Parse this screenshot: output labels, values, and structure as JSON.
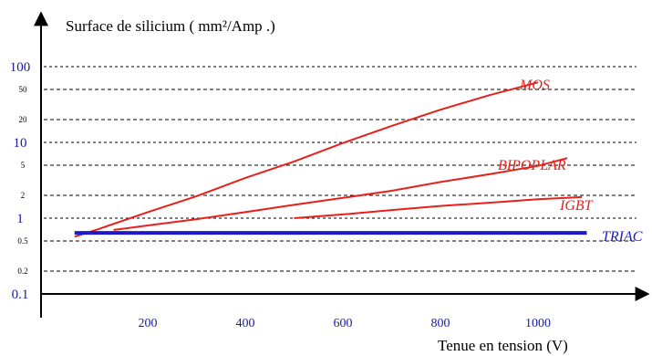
{
  "chart_data": {
    "type": "line",
    "title": "",
    "ylabel": "Surface de silicium ( mm²/Amp .)",
    "xlabel": "Tenue en tension (V)",
    "y_scale": "log",
    "ylim": [
      0.1,
      100
    ],
    "xlim": [
      0,
      1100
    ],
    "grid": "dashed horizontal lines at major and minor y ticks",
    "x_ticks": [
      {
        "value": 200,
        "label": "200"
      },
      {
        "value": 400,
        "label": "400"
      },
      {
        "value": 600,
        "label": "600"
      },
      {
        "value": 800,
        "label": "800"
      },
      {
        "value": 1000,
        "label": "1000"
      }
    ],
    "y_ticks": [
      {
        "value": 100,
        "label": "100",
        "major": true
      },
      {
        "value": 50,
        "label": "50",
        "major": false
      },
      {
        "value": 20,
        "label": "20",
        "major": false
      },
      {
        "value": 10,
        "label": "10",
        "major": true
      },
      {
        "value": 5,
        "label": "5",
        "major": false
      },
      {
        "value": 2,
        "label": "2",
        "major": false
      },
      {
        "value": 1,
        "label": "1",
        "major": true
      },
      {
        "value": 0.5,
        "label": "0.5",
        "major": false
      },
      {
        "value": 0.2,
        "label": "0.2",
        "major": false
      },
      {
        "value": 0.1,
        "label": "0.1",
        "major": true
      }
    ],
    "series": [
      {
        "name": "MOS",
        "color": "#e8201a",
        "x": [
          50,
          100,
          200,
          300,
          400,
          500,
          600,
          700,
          800,
          900,
          1000
        ],
        "y": [
          0.57,
          0.72,
          1.2,
          1.95,
          3.4,
          5.6,
          9.8,
          16.5,
          27,
          42,
          62
        ]
      },
      {
        "name": "BIPOPLAR",
        "color": "#e8201a",
        "x": [
          130,
          200,
          300,
          400,
          500,
          600,
          700,
          800,
          900,
          1000,
          1060
        ],
        "y": [
          0.7,
          0.8,
          0.97,
          1.2,
          1.5,
          1.85,
          2.3,
          3.0,
          3.8,
          4.9,
          6.2
        ]
      },
      {
        "name": "IGBT",
        "color": "#e8201a",
        "x": [
          500,
          600,
          700,
          800,
          900,
          1000,
          1090
        ],
        "y": [
          1.0,
          1.12,
          1.28,
          1.45,
          1.6,
          1.78,
          1.9
        ]
      },
      {
        "name": "TRIAC",
        "color": "#1a1acc",
        "x": [
          50,
          1100
        ],
        "y": [
          0.64,
          0.64
        ]
      }
    ]
  }
}
